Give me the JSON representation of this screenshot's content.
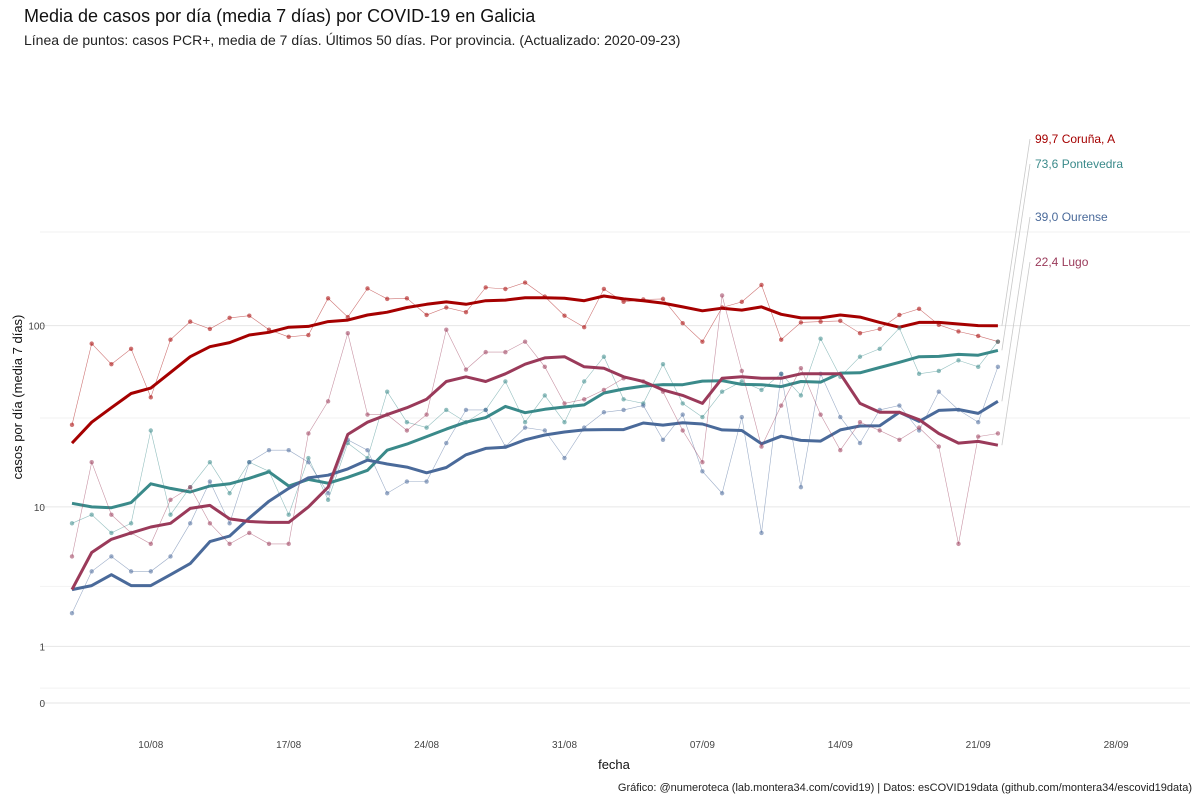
{
  "chart_data": {
    "type": "line",
    "title": "Media de casos por día (media 7 días) por COVID-19 en Galicia",
    "subtitle": "Línea de puntos: casos PCR+, media de 7 días. Últimos 50 días. Por provincia. (Actualizado: 2020-09-23)",
    "xlabel": "fecha",
    "ylabel": "casos por día (media 7 días)",
    "caption": "Gráfico: @numeroteca (lab.montera34.com/covid19) | Datos: esCOVID19data (github.com/montera34/escovid19data)",
    "y_scale": "log",
    "grid": true,
    "x_ticks": [
      "10/08",
      "17/08",
      "24/08",
      "31/08",
      "07/09",
      "14/09",
      "21/09",
      "28/09"
    ],
    "y_ticks": [
      "0",
      "1",
      "10",
      "100"
    ],
    "x_dates": [
      "2020-08-06",
      "2020-08-07",
      "2020-08-08",
      "2020-08-09",
      "2020-08-10",
      "2020-08-11",
      "2020-08-12",
      "2020-08-13",
      "2020-08-14",
      "2020-08-15",
      "2020-08-16",
      "2020-08-17",
      "2020-08-18",
      "2020-08-19",
      "2020-08-20",
      "2020-08-21",
      "2020-08-22",
      "2020-08-23",
      "2020-08-24",
      "2020-08-25",
      "2020-08-26",
      "2020-08-27",
      "2020-08-28",
      "2020-08-29",
      "2020-08-30",
      "2020-08-31",
      "2020-09-01",
      "2020-09-02",
      "2020-09-03",
      "2020-09-04",
      "2020-09-05",
      "2020-09-06",
      "2020-09-07",
      "2020-09-08",
      "2020-09-09",
      "2020-09-10",
      "2020-09-11",
      "2020-09-12",
      "2020-09-13",
      "2020-09-14",
      "2020-09-15",
      "2020-09-16",
      "2020-09-17",
      "2020-09-18",
      "2020-09-19",
      "2020-09-20",
      "2020-09-21",
      "2020-09-22"
    ],
    "series": [
      {
        "name": "Coruña, A",
        "end_label": "99,7",
        "color": "#a50000",
        "avg": [
          23,
          30,
          36,
          43,
          46,
          56,
          68,
          77,
          81,
          89,
          92,
          98,
          99,
          105,
          107,
          114,
          118,
          125,
          130,
          134,
          130,
          136,
          137,
          141,
          141,
          140,
          136,
          144,
          139,
          136,
          132,
          126,
          120,
          124,
          121,
          126,
          115,
          110,
          110,
          114,
          111,
          104,
          98,
          104,
          104,
          102,
          100,
          99.7
        ],
        "points": [
          29,
          80,
          62,
          75,
          41,
          84,
          105,
          96,
          110,
          113,
          95,
          87,
          89,
          140,
          111,
          158,
          139,
          140,
          114,
          125,
          118,
          160,
          157,
          170,
          143,
          113,
          98,
          157,
          134,
          138,
          139,
          103,
          82,
          125,
          134,
          165,
          84,
          104,
          105,
          106,
          91,
          96,
          114,
          123,
          101,
          93,
          88,
          82
        ]
      },
      {
        "name": "Pontevedra",
        "end_label": "73,6",
        "color": "#3a8a8a",
        "avg": [
          10.5,
          10,
          9.9,
          10.6,
          13.6,
          12.8,
          12.2,
          13.2,
          13.6,
          14.6,
          15.9,
          13.2,
          14.4,
          13.7,
          14.8,
          16.2,
          21,
          22.7,
          25,
          27.5,
          30,
          31.8,
          36.6,
          33.8,
          35.3,
          36.3,
          37.3,
          43.3,
          45.5,
          47.2,
          48.1,
          48,
          50.2,
          50.5,
          48.2,
          48,
          46.9,
          50,
          49.6,
          55.5,
          55.7,
          59.5,
          63.5,
          68,
          68.3,
          70,
          69.3,
          73.6
        ],
        "points": [
          8,
          9,
          7,
          8,
          27,
          9,
          13,
          18,
          12,
          18,
          16,
          9,
          19,
          11,
          23,
          19,
          44,
          30,
          28,
          35,
          30,
          35,
          50,
          30,
          42,
          30,
          50,
          68,
          40,
          38,
          62,
          38,
          32,
          44,
          50,
          45,
          55,
          42,
          85,
          53,
          68,
          75,
          97,
          55,
          57,
          65,
          60,
          82
        ]
      },
      {
        "name": "Ourense",
        "end_label": "39,0",
        "color": "#4a6a9a",
        "avg": [
          3,
          3.2,
          3.8,
          3.2,
          3.2,
          3.8,
          4.5,
          6.2,
          6.7,
          8.6,
          10.8,
          12.8,
          14.7,
          15.2,
          16.5,
          18.5,
          17.6,
          16.9,
          15.7,
          16.8,
          19.8,
          21.5,
          21.8,
          24,
          25.5,
          26.5,
          27.2,
          27.3,
          27.3,
          29.7,
          28.9,
          29.8,
          29.3,
          27.2,
          27.0,
          22.8,
          25.1,
          23.8,
          23.6,
          27.2,
          28.6,
          28.7,
          34,
          30.3,
          34.8,
          35.2,
          33.5,
          39
        ],
        "points": [
          2,
          4,
          5,
          4,
          4,
          5,
          8,
          14,
          8,
          18,
          21,
          21,
          18,
          12,
          24,
          21,
          12,
          14,
          14,
          23,
          35,
          35,
          22,
          28,
          27,
          19,
          28,
          34,
          35,
          37,
          24,
          33,
          16,
          12,
          32,
          7,
          55,
          13,
          55,
          32,
          23,
          35,
          37,
          27,
          44,
          35,
          30,
          60
        ]
      },
      {
        "name": "Lugo",
        "end_label": "22,4",
        "color": "#9a3a5a",
        "avg": [
          3,
          5.3,
          6.4,
          7.0,
          7.6,
          8.0,
          9.8,
          10.2,
          8.5,
          8.2,
          8.1,
          8.1,
          10,
          13,
          25.7,
          30,
          33,
          36,
          40,
          50,
          53,
          50,
          55,
          62,
          67,
          68,
          60,
          59,
          53,
          50,
          45,
          42,
          38,
          52,
          53,
          52,
          52,
          55,
          55,
          55,
          38,
          34,
          34,
          31,
          26,
          23,
          23.5,
          22.4
        ],
        "points": [
          5,
          18,
          9,
          7,
          6,
          11,
          13,
          8,
          6,
          7,
          6,
          6,
          26,
          39,
          91,
          33,
          33,
          27,
          33,
          95,
          58,
          72,
          72,
          82,
          60,
          38,
          40,
          45,
          52,
          50,
          44,
          27,
          18,
          145,
          57,
          22,
          37,
          59,
          33,
          21,
          30,
          27,
          24,
          28,
          22,
          6,
          25,
          26
        ]
      }
    ]
  }
}
